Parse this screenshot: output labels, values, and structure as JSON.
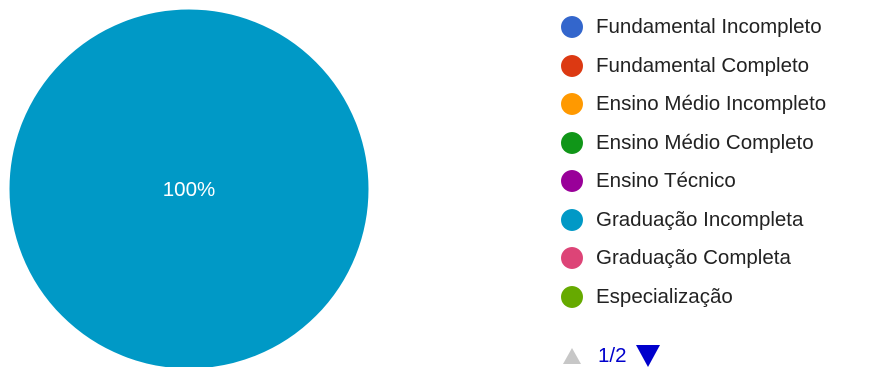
{
  "chart_data": {
    "type": "pie",
    "title": "",
    "slices": [
      {
        "label": "Fundamental Incompleto",
        "value": 0,
        "color": "#3366cc"
      },
      {
        "label": "Fundamental Completo",
        "value": 0,
        "color": "#dc3912"
      },
      {
        "label": "Ensino Médio Incompleto",
        "value": 0,
        "color": "#ff9900"
      },
      {
        "label": "Ensino Médio Completo",
        "value": 0,
        "color": "#109618"
      },
      {
        "label": "Ensino Técnico",
        "value": 0,
        "color": "#990099"
      },
      {
        "label": "Graduação Incompleta",
        "value": 100,
        "color": "#0099c6"
      },
      {
        "label": "Graduação Completa",
        "value": 0,
        "color": "#dd4477"
      },
      {
        "label": "Especialização",
        "value": 0,
        "color": "#66aa00"
      }
    ],
    "data_labels": [
      "100%"
    ],
    "legend_position": "right"
  },
  "legend": {
    "items": [
      {
        "label": "Fundamental Incompleto",
        "color": "#3366cc"
      },
      {
        "label": "Fundamental Completo",
        "color": "#dc3912"
      },
      {
        "label": "Ensino Médio Incompleto",
        "color": "#ff9900"
      },
      {
        "label": "Ensino Médio Completo",
        "color": "#109618"
      },
      {
        "label": "Ensino Técnico",
        "color": "#990099"
      },
      {
        "label": "Graduação Incompleta",
        "color": "#0099c6"
      },
      {
        "label": "Graduação Completa",
        "color": "#dd4477"
      },
      {
        "label": "Especialização",
        "color": "#66aa00"
      }
    ]
  },
  "pager": {
    "text": "1/2",
    "prev_icon": "triangle-up-icon",
    "next_icon": "triangle-down-icon",
    "active_color": "#0000cc",
    "disabled_color": "#c7c7c7"
  }
}
